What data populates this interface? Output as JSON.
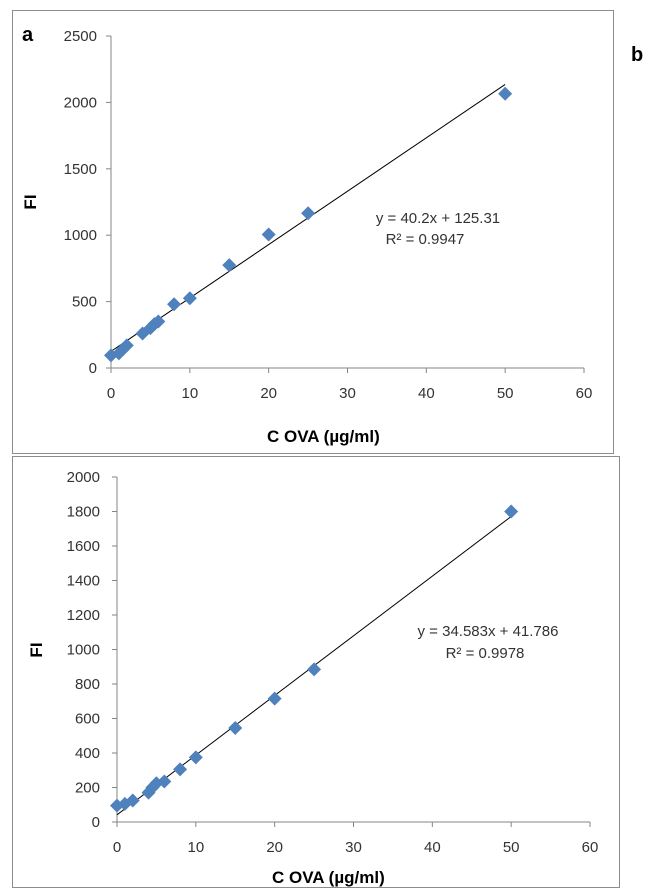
{
  "chart_data": [
    {
      "type": "scatter",
      "panel_label": "a",
      "xlabel": "C OVA (µg/ml)",
      "ylabel": "FI",
      "xlim": [
        0,
        60
      ],
      "ylim": [
        0,
        2500
      ],
      "xticks": [
        0,
        10,
        20,
        30,
        40,
        50,
        60
      ],
      "yticks": [
        0,
        500,
        1000,
        1500,
        2000,
        2500
      ],
      "grid": false,
      "series": [
        {
          "color": "#4f81bd",
          "marker": "diamond",
          "points": [
            {
              "x": 0,
              "y": 95
            },
            {
              "x": 1,
              "y": 110
            },
            {
              "x": 1.5,
              "y": 140
            },
            {
              "x": 2,
              "y": 170
            },
            {
              "x": 4,
              "y": 260
            },
            {
              "x": 5,
              "y": 300
            },
            {
              "x": 5.5,
              "y": 330
            },
            {
              "x": 6,
              "y": 350
            },
            {
              "x": 8,
              "y": 480
            },
            {
              "x": 10,
              "y": 525
            },
            {
              "x": 15,
              "y": 775
            },
            {
              "x": 20,
              "y": 1005
            },
            {
              "x": 25,
              "y": 1165
            },
            {
              "x": 50,
              "y": 2065
            }
          ]
        }
      ],
      "trendline": {
        "slope": 40.2,
        "intercept": 125.31,
        "x_range": [
          0,
          50
        ]
      },
      "equation": "y = 40.2x + 125.31",
      "r_squared": "R² = 0.9947"
    },
    {
      "type": "scatter",
      "panel_label": "b",
      "xlabel": "C OVA (µg/ml)",
      "ylabel": "FI",
      "xlim": [
        0,
        60
      ],
      "ylim": [
        0,
        2000
      ],
      "xticks": [
        0,
        10,
        20,
        30,
        40,
        50,
        60
      ],
      "yticks": [
        0,
        200,
        400,
        600,
        800,
        1000,
        1200,
        1400,
        1600,
        1800,
        2000
      ],
      "grid": false,
      "series": [
        {
          "color": "#4f81bd",
          "marker": "diamond",
          "points": [
            {
              "x": 0,
              "y": 95
            },
            {
              "x": 1,
              "y": 105
            },
            {
              "x": 2,
              "y": 125
            },
            {
              "x": 4,
              "y": 170
            },
            {
              "x": 4.5,
              "y": 200
            },
            {
              "x": 5,
              "y": 225
            },
            {
              "x": 6,
              "y": 235
            },
            {
              "x": 8,
              "y": 305
            },
            {
              "x": 10,
              "y": 375
            },
            {
              "x": 15,
              "y": 545
            },
            {
              "x": 20,
              "y": 715
            },
            {
              "x": 25,
              "y": 885
            },
            {
              "x": 50,
              "y": 1800
            }
          ]
        }
      ],
      "trendline": {
        "slope": 34.583,
        "intercept": 41.786,
        "x_range": [
          0,
          50
        ]
      },
      "equation": "y = 34.583x + 41.786",
      "r_squared": "R² = 0.9978"
    }
  ]
}
